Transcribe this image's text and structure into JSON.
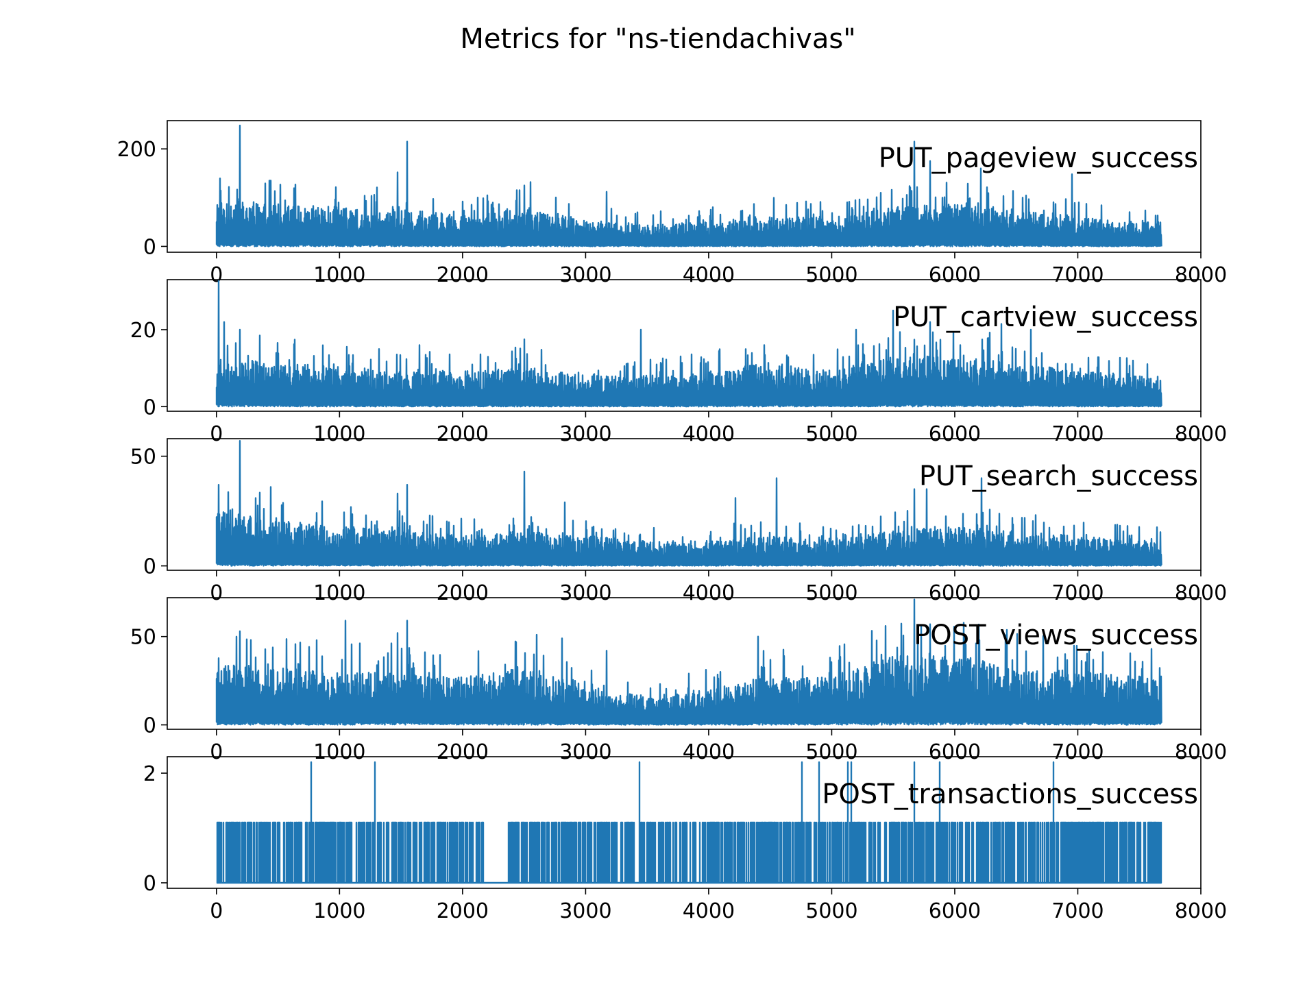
{
  "figure": {
    "title": "Metrics for \"ns-tiendachivas\"",
    "line_color": "#1f77b4"
  },
  "chart_data": [
    {
      "type": "line",
      "title": "PUT_pageview_success",
      "xlim": [
        -400,
        8000
      ],
      "ylim": [
        -12,
        258
      ],
      "x_ticks": [
        0,
        1000,
        2000,
        3000,
        4000,
        5000,
        6000,
        7000,
        8000
      ],
      "y_ticks": [
        0,
        200
      ],
      "series": [
        {
          "profile": {
            "n": 7680,
            "base_x": [
              0,
              500,
              1000,
              1500,
              2000,
              2500,
              3000,
              3500,
              4000,
              4500,
              5000,
              5500,
              6000,
              6500,
              7000,
              7500,
              7680
            ],
            "base_y": [
              42,
              38,
              35,
              33,
              28,
              33,
              24,
              20,
              22,
              28,
              25,
              35,
              38,
              32,
              26,
              22,
              22
            ],
            "spikes": [
              [
                190,
                248
              ],
              [
                1550,
                215
              ],
              [
                1470,
                152
              ],
              [
                5670,
                215
              ],
              [
                5800,
                175
              ],
              [
                6210,
                160
              ],
              [
                6950,
                148
              ],
              [
                3170,
                112
              ],
              [
                2550,
                132
              ],
              [
                2500,
                125
              ],
              [
                440,
                135
              ]
            ]
          }
        }
      ]
    },
    {
      "type": "line",
      "title": "PUT_cartview_success",
      "xlim": [
        -400,
        8000
      ],
      "ylim": [
        -1.2,
        33
      ],
      "x_ticks": [
        0,
        1000,
        2000,
        3000,
        4000,
        5000,
        6000,
        7000,
        8000
      ],
      "y_ticks": [
        0,
        20
      ],
      "series": [
        {
          "profile": {
            "n": 7680,
            "base_x": [
              0,
              500,
              1000,
              1500,
              2000,
              2500,
              3000,
              3500,
              4000,
              4500,
              5000,
              5500,
              6000,
              6500,
              7000,
              7500,
              7680
            ],
            "base_y": [
              5.5,
              5,
              4.5,
              4,
              4,
              4.5,
              3.5,
              3.5,
              4,
              5,
              4,
              5.5,
              6,
              5,
              4,
              3.5,
              3
            ],
            "spikes": [
              [
                20,
                33
              ],
              [
                60,
                22
              ],
              [
                190,
                20
              ],
              [
                3450,
                20
              ],
              [
                5500,
                25
              ],
              [
                5800,
                22
              ],
              [
                6380,
                21.5
              ],
              [
                5200,
                20
              ],
              [
                6620,
                20
              ],
              [
                1650,
                16
              ],
              [
                2500,
                17.5
              ],
              [
                4450,
                16
              ]
            ]
          }
        }
      ]
    },
    {
      "type": "line",
      "title": "PUT_search_success",
      "xlim": [
        -400,
        8000
      ],
      "ylim": [
        -2,
        58
      ],
      "x_ticks": [
        0,
        1000,
        2000,
        3000,
        4000,
        5000,
        6000,
        7000,
        8000
      ],
      "y_ticks": [
        0,
        50
      ],
      "series": [
        {
          "profile": {
            "n": 7680,
            "base_x": [
              0,
              500,
              1000,
              1500,
              2000,
              2500,
              3000,
              3500,
              4000,
              4500,
              5000,
              5500,
              6000,
              6500,
              7000,
              7500,
              7680
            ],
            "base_y": [
              11,
              9,
              8,
              7,
              6,
              7,
              6,
              5,
              5,
              6,
              5,
              7,
              8,
              7,
              6,
              5,
              5
            ],
            "spikes": [
              [
                190,
                57
              ],
              [
                20,
                37
              ],
              [
                440,
                36
              ],
              [
                1550,
                37
              ],
              [
                2500,
                43
              ],
              [
                4550,
                40
              ],
              [
                5670,
                35
              ],
              [
                5770,
                35
              ],
              [
                6220,
                40
              ],
              [
                4220,
                31
              ],
              [
                2830,
                29
              ],
              [
                1470,
                33
              ]
            ]
          }
        }
      ]
    },
    {
      "type": "line",
      "title": "POST_views_success",
      "xlim": [
        -400,
        8000
      ],
      "ylim": [
        -2.5,
        72
      ],
      "x_ticks": [
        0,
        1000,
        2000,
        3000,
        4000,
        5000,
        6000,
        7000,
        8000
      ],
      "y_ticks": [
        0,
        50
      ],
      "series": [
        {
          "profile": {
            "n": 7680,
            "base_x": [
              0,
              500,
              1000,
              1500,
              2000,
              2500,
              3000,
              3500,
              4000,
              4500,
              5000,
              5500,
              6000,
              6500,
              7000,
              7500,
              7680
            ],
            "base_y": [
              15,
              14,
              13,
              13,
              12,
              14,
              9,
              7,
              9,
              12,
              12,
              17,
              17,
              15,
              13,
              12,
              12
            ],
            "spikes": [
              [
                190,
                53
              ],
              [
                1050,
                59
              ],
              [
                1550,
                59
              ],
              [
                5670,
                71
              ],
              [
                5800,
                57
              ],
              [
                4400,
                50
              ],
              [
                2600,
                51
              ],
              [
                1470,
                52
              ],
              [
                2810,
                49
              ],
              [
                6200,
                48
              ],
              [
                7600,
                43
              ],
              [
                3170,
                42
              ]
            ]
          }
        }
      ]
    },
    {
      "type": "line",
      "title": "POST_transactions_success",
      "xlim": [
        -400,
        8000
      ],
      "ylim": [
        -0.1,
        2.3
      ],
      "x_ticks": [
        0,
        1000,
        2000,
        3000,
        4000,
        5000,
        6000,
        7000,
        8000
      ],
      "y_ticks": [
        0,
        2
      ],
      "series": [
        {
          "binary": {
            "n": 7680,
            "one_value": 1.1,
            "twos": [
              770,
              1290,
              3440,
              4760,
              4900,
              5130,
              5160,
              5670,
              5880,
              6800
            ],
            "gap": [
              2180,
              2370
            ]
          }
        }
      ]
    }
  ]
}
